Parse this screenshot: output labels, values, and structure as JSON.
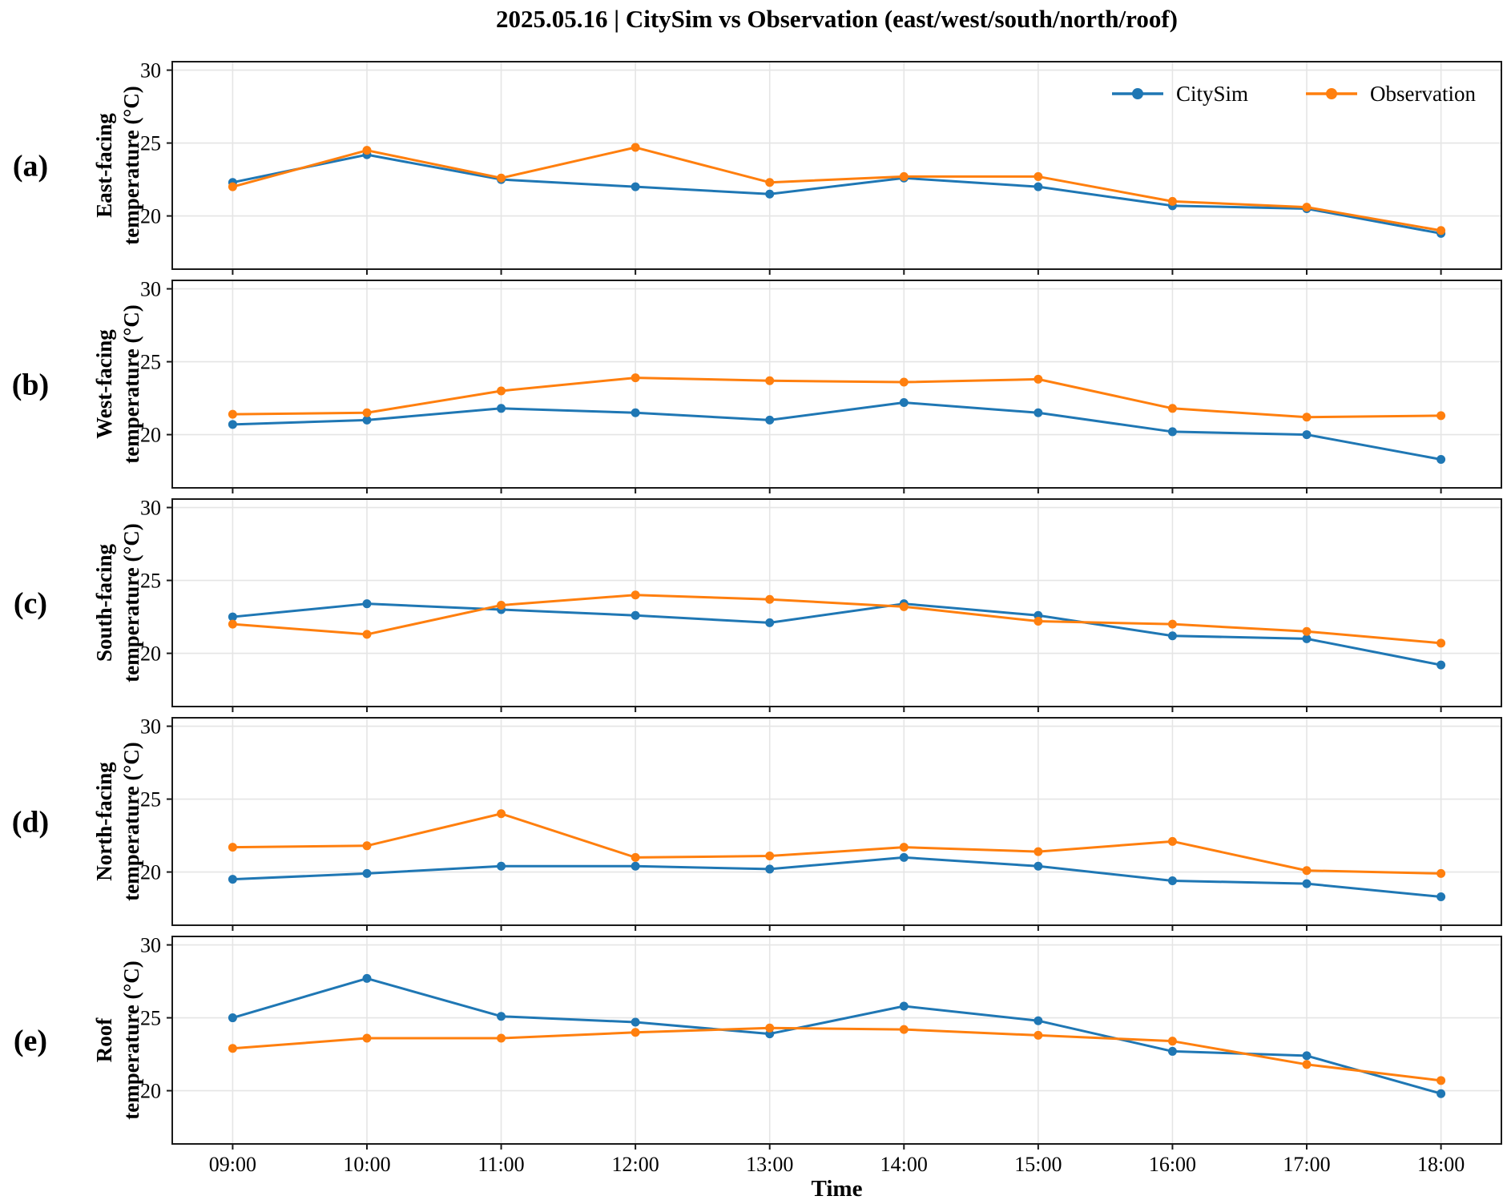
{
  "title": "2025.05.16 | CitySim vs Observation (east/west/south/north/roof)",
  "xlabel": "Time",
  "colors": {
    "citysim": "#1f77b4",
    "observation": "#ff7f0e",
    "grid": "#e5e5e5",
    "spine": "#1a1a1a"
  },
  "legend": {
    "items": [
      {
        "label": "CitySim",
        "color": "#1f77b4"
      },
      {
        "label": "Observation",
        "color": "#ff7f0e"
      }
    ]
  },
  "chart_data": {
    "type": "line",
    "x": [
      "09:00",
      "10:00",
      "11:00",
      "12:00",
      "13:00",
      "14:00",
      "15:00",
      "16:00",
      "17:00",
      "18:00"
    ],
    "xlabel": "Time",
    "yticks": [
      20,
      25,
      30
    ],
    "ylim": [
      16.35,
      30.58
    ],
    "grid": true,
    "legend_position": "top-right of panel (a)",
    "marker": "circle",
    "panels": [
      {
        "label": "(a)",
        "ylabel_lines": [
          "East-facing",
          "temperature (°C)"
        ],
        "series": [
          {
            "name": "CitySim",
            "color": "#1f77b4",
            "values": [
              22.3,
              24.2,
              22.5,
              22.0,
              21.5,
              22.6,
              22.0,
              20.7,
              20.5,
              18.8
            ]
          },
          {
            "name": "Observation",
            "color": "#ff7f0e",
            "values": [
              22.0,
              24.5,
              22.6,
              24.7,
              22.3,
              22.7,
              22.7,
              21.0,
              20.6,
              19.0
            ]
          }
        ]
      },
      {
        "label": "(b)",
        "ylabel_lines": [
          "West-facing",
          "temperature (°C)"
        ],
        "series": [
          {
            "name": "CitySim",
            "color": "#1f77b4",
            "values": [
              20.7,
              21.0,
              21.8,
              21.5,
              21.0,
              22.2,
              21.5,
              20.2,
              20.0,
              18.3
            ]
          },
          {
            "name": "Observation",
            "color": "#ff7f0e",
            "values": [
              21.4,
              21.5,
              23.0,
              23.9,
              23.7,
              23.6,
              23.8,
              21.8,
              21.2,
              21.3
            ]
          }
        ]
      },
      {
        "label": "(c)",
        "ylabel_lines": [
          "South-facing",
          "temperature (°C)"
        ],
        "series": [
          {
            "name": "CitySim",
            "color": "#1f77b4",
            "values": [
              22.5,
              23.4,
              23.0,
              22.6,
              22.1,
              23.4,
              22.6,
              21.2,
              21.0,
              19.2
            ]
          },
          {
            "name": "Observation",
            "color": "#ff7f0e",
            "values": [
              22.0,
              21.3,
              23.3,
              24.0,
              23.7,
              23.2,
              22.2,
              22.0,
              21.5,
              20.7
            ]
          }
        ]
      },
      {
        "label": "(d)",
        "ylabel_lines": [
          "North-facing",
          "temperature (°C)"
        ],
        "series": [
          {
            "name": "CitySim",
            "color": "#1f77b4",
            "values": [
              19.5,
              19.9,
              20.4,
              20.4,
              20.2,
              21.0,
              20.4,
              19.4,
              19.2,
              18.3
            ]
          },
          {
            "name": "Observation",
            "color": "#ff7f0e",
            "values": [
              21.7,
              21.8,
              24.0,
              21.0,
              21.1,
              21.7,
              21.4,
              22.1,
              20.1,
              19.9
            ]
          }
        ]
      },
      {
        "label": "(e)",
        "ylabel_lines": [
          "Roof",
          "temperature (°C)"
        ],
        "series": [
          {
            "name": "CitySim",
            "color": "#1f77b4",
            "values": [
              25.0,
              27.7,
              25.1,
              24.7,
              23.9,
              25.8,
              24.8,
              22.7,
              22.4,
              19.8
            ]
          },
          {
            "name": "Observation",
            "color": "#ff7f0e",
            "values": [
              22.9,
              23.6,
              23.6,
              24.0,
              24.3,
              24.2,
              23.8,
              23.4,
              21.8,
              20.7
            ]
          }
        ]
      }
    ]
  }
}
